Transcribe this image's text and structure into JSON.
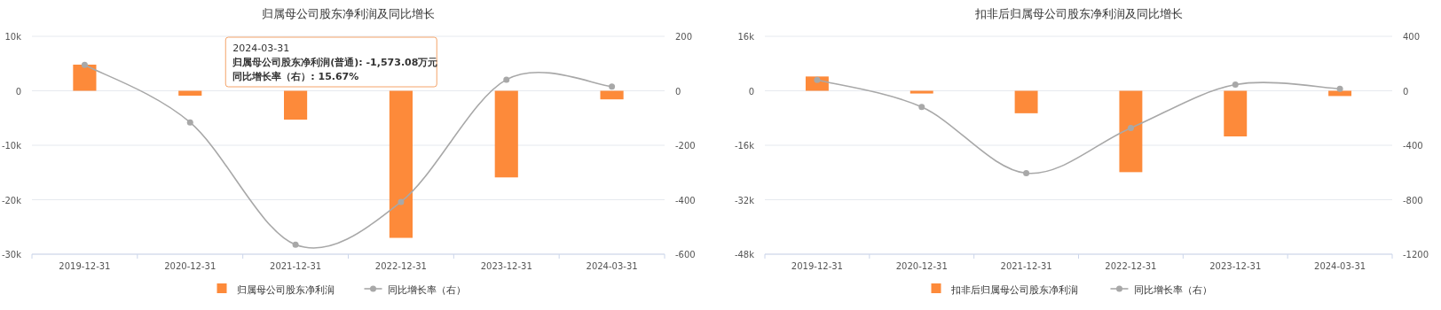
{
  "chart_data": [
    {
      "type": "bar",
      "title": "归属母公司股东净利润及同比增长",
      "categories": [
        "2019-12-31",
        "2020-12-31",
        "2021-12-31",
        "2022-12-31",
        "2023-12-31",
        "2024-03-31"
      ],
      "series": [
        {
          "name": "归属母公司股东净利润",
          "color": "#fd8a3a",
          "values": [
            4800,
            -900,
            -5300,
            -27000,
            -15900,
            -1573.08
          ]
        },
        {
          "name": "同比增长率（右）",
          "type": "line",
          "axis": "y2",
          "color": "#a8a8a8",
          "values": [
            95,
            -116,
            -565,
            -408,
            41,
            15.67
          ]
        }
      ],
      "ylim": [
        -30000,
        10000
      ],
      "yticks": [
        {
          "value": -30000,
          "label": "-30k"
        },
        {
          "value": -20000,
          "label": "-20k"
        },
        {
          "value": -10000,
          "label": "-10k"
        },
        0,
        {
          "value": 10000,
          "label": "10k"
        }
      ],
      "y2lim": [
        -600,
        200
      ],
      "y2ticks": [
        -600,
        -400,
        -200,
        0,
        200
      ],
      "grid": "y",
      "legend": "bottom",
      "marker": "circle",
      "annotations": [
        "2024-03-31",
        "归属母公司股东净利润(普通): -1,573.08万元",
        "同比增长率（右）: 15.67%"
      ]
    },
    {
      "type": "bar",
      "title": "扣非后归属母公司股东净利润及同比增长",
      "categories": [
        "2019-12-31",
        "2020-12-31",
        "2021-12-31",
        "2022-12-31",
        "2023-12-31",
        "2024-03-31"
      ],
      "series": [
        {
          "name": "扣非后归属母公司股东净利润",
          "color": "#fd8a3a",
          "values": [
            4200,
            -800,
            -6600,
            -23900,
            -13400,
            -1540
          ]
        },
        {
          "name": "同比增长率（右）",
          "type": "line",
          "axis": "y2",
          "color": "#a8a8a8",
          "values": [
            80,
            -119,
            -605,
            -273,
            45,
            14
          ]
        }
      ],
      "ylim": [
        -48000,
        16000
      ],
      "yticks": [
        {
          "value": -48000,
          "label": "-48k"
        },
        {
          "value": -32000,
          "label": "-32k"
        },
        {
          "value": -16000,
          "label": "-16k"
        },
        0,
        {
          "value": 16000,
          "label": "16k"
        }
      ],
      "y2lim": [
        -1200,
        400
      ],
      "y2ticks": [
        -1200,
        -800,
        -400,
        0,
        400
      ],
      "grid": "y",
      "legend": "bottom",
      "marker": "circle"
    }
  ]
}
